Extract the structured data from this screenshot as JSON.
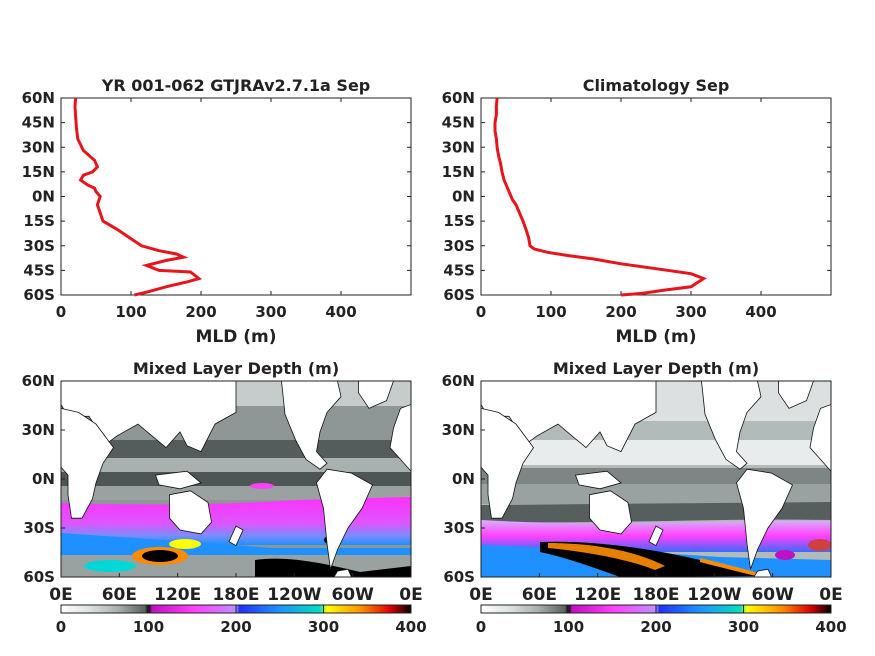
{
  "chart_data": [
    {
      "type": "line",
      "title": "YR 001-062 GTJRAv2.7.1a Sep",
      "xlabel": "MLD (m)",
      "ylabel": "",
      "xlim": [
        0,
        500
      ],
      "ylim": [
        -60,
        60
      ],
      "xticks": [
        "0",
        "100",
        "200",
        "300",
        "400"
      ],
      "yticks": [
        "60N",
        "45N",
        "30N",
        "15N",
        "0N",
        "15S",
        "30S",
        "45S",
        "60S"
      ],
      "line_color": "#e8141c",
      "series": [
        {
          "x": [
            105,
            125,
            150,
            180,
            197,
            185,
            140,
            122,
            150,
            175,
            165,
            140,
            115,
            80,
            60,
            52,
            56,
            50,
            48,
            38,
            28,
            32,
            45,
            52,
            48,
            32,
            24,
            22,
            21,
            20,
            21
          ],
          "y": [
            -60,
            -58,
            -55,
            -52,
            -50,
            -46,
            -45,
            -42,
            -39,
            -37,
            -35,
            -33,
            -30,
            -20,
            -15,
            -5,
            0,
            3,
            5,
            7,
            10,
            13,
            15,
            18,
            22,
            28,
            35,
            42,
            48,
            55,
            60
          ]
        }
      ]
    },
    {
      "type": "line",
      "title": "Climatology Sep",
      "xlabel": "MLD (m)",
      "ylabel": "",
      "xlim": [
        0,
        500
      ],
      "ylim": [
        -60,
        60
      ],
      "xticks": [
        "0",
        "100",
        "200",
        "300",
        "400"
      ],
      "yticks": [
        "60N",
        "45N",
        "30N",
        "15N",
        "0N",
        "15S",
        "30S",
        "45S",
        "60S"
      ],
      "line_color": "#e8141c",
      "series": [
        {
          "x": [
            200,
            230,
            262,
            300,
            318,
            300,
            250,
            200,
            160,
            125,
            95,
            76,
            70,
            68,
            65,
            60,
            55,
            50,
            45,
            38,
            33,
            30,
            28,
            25,
            23,
            22,
            20,
            20,
            22,
            22,
            23
          ],
          "y": [
            -60,
            -59,
            -57,
            -55,
            -50,
            -47,
            -44,
            -41,
            -38,
            -36,
            -34,
            -32,
            -30,
            -25,
            -21,
            -15,
            -10,
            -5,
            -2,
            5,
            10,
            15,
            20,
            25,
            30,
            35,
            40,
            45,
            50,
            55,
            60
          ]
        }
      ]
    },
    {
      "type": "heatmap",
      "title": "Mixed Layer Depth (m)",
      "xticks": [
        "0E",
        "60E",
        "120E",
        "180E",
        "120W",
        "60W",
        "0E"
      ],
      "yticks": [
        "60N",
        "30N",
        "0N",
        "30S",
        "60S"
      ],
      "xlim": [
        0,
        360
      ],
      "ylim": [
        -60,
        60
      ],
      "colorbar": {
        "ticks": [
          "0",
          "100",
          "200",
          "300",
          "400"
        ],
        "range": [
          0,
          400
        ]
      }
    },
    {
      "type": "heatmap",
      "title": "Mixed Layer Depth (m)",
      "xticks": [
        "0E",
        "60E",
        "120E",
        "180E",
        "120W",
        "60W",
        "0E"
      ],
      "yticks": [
        "60N",
        "30N",
        "0N",
        "30S",
        "60S"
      ],
      "xlim": [
        0,
        360
      ],
      "ylim": [
        -60,
        60
      ],
      "colorbar": {
        "ticks": [
          "0",
          "100",
          "200",
          "300",
          "400"
        ],
        "range": [
          0,
          400
        ]
      }
    }
  ]
}
